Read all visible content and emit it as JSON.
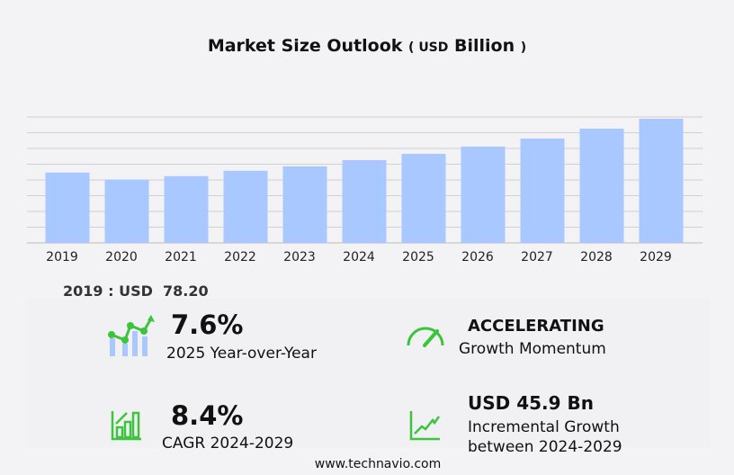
{
  "chart_data": {
    "type": "bar",
    "title": "Market Size Outlook",
    "unit": "( USD Billion )",
    "unit_prefix": "USD",
    "unit_word": "Billion",
    "categories": [
      "2019",
      "2020",
      "2021",
      "2022",
      "2023",
      "2024",
      "2025",
      "2026",
      "2027",
      "2028",
      "2029"
    ],
    "values": [
      78.2,
      70.3,
      74.2,
      80.2,
      85.1,
      92.0,
      99.0,
      107.0,
      116.0,
      127.0,
      138.0
    ],
    "ylim": [
      0,
      140
    ],
    "grid": true,
    "bar_color": "#a8c8ff"
  },
  "highlight": {
    "label": "2019 : USD",
    "value": "78.20"
  },
  "kpis": {
    "yoy": {
      "value": "7.6%",
      "label": "2025 Year-over-Year"
    },
    "momentum": {
      "value": "ACCELERATING",
      "label": "Growth Momentum"
    },
    "cagr": {
      "value": "8.4%",
      "label": "CAGR 2024-2029"
    },
    "incremental": {
      "value": "USD 45.9 Bn",
      "label1": "Incremental Growth",
      "label2": "between 2024-2029"
    }
  },
  "footer": "www.technavio.com",
  "colors": {
    "accent": "#3cc43c",
    "bar": "#a8c8ff"
  }
}
